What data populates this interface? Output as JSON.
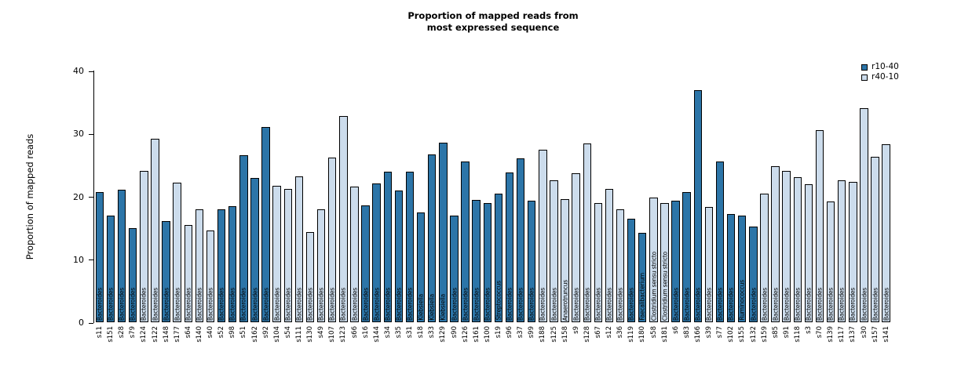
{
  "chart": {
    "title_line1": "Proportion of mapped reads from",
    "title_line2": "most expressed sequence",
    "ylabel": "Proportion of mapped reads"
  },
  "chart_data": {
    "type": "bar",
    "title": "Proportion of mapped reads from most expressed sequence",
    "xlabel": "",
    "ylabel": "Proportion of mapped reads",
    "ylim": [
      0,
      40
    ],
    "yticks": [
      0,
      10,
      20,
      30,
      40
    ],
    "grid": false,
    "legend_position": "top-right",
    "bar_outline": "#000000",
    "legend": [
      {
        "label": "r10-40",
        "color": "#2c75a8"
      },
      {
        "label": "r40-10",
        "color": "#ccdcec"
      }
    ],
    "bars": [
      {
        "sample": "s11",
        "value": 20.7,
        "group": "r10-40",
        "taxon": "Bacteroides"
      },
      {
        "sample": "s151",
        "value": 17.0,
        "group": "r10-40",
        "taxon": "Bacteroides"
      },
      {
        "sample": "s28",
        "value": 21.1,
        "group": "r10-40",
        "taxon": "Bacteroides"
      },
      {
        "sample": "s79",
        "value": 14.9,
        "group": "r10-40",
        "taxon": "Bacteroides"
      },
      {
        "sample": "s124",
        "value": 24.1,
        "group": "r40-10",
        "taxon": "Bacteroides"
      },
      {
        "sample": "s122",
        "value": 29.1,
        "group": "r40-10",
        "taxon": "Bacteroides"
      },
      {
        "sample": "s148",
        "value": 16.1,
        "group": "r10-40",
        "taxon": "Bacteroides"
      },
      {
        "sample": "s177",
        "value": 22.2,
        "group": "r40-10",
        "taxon": "Bacteroides"
      },
      {
        "sample": "s64",
        "value": 15.4,
        "group": "r40-10",
        "taxon": "Bacteroides"
      },
      {
        "sample": "s140",
        "value": 17.9,
        "group": "r40-10",
        "taxon": "Bacteroides"
      },
      {
        "sample": "s40",
        "value": 14.6,
        "group": "r40-10",
        "taxon": "Bacteroides"
      },
      {
        "sample": "s52",
        "value": 18.0,
        "group": "r10-40",
        "taxon": "Bacteroides"
      },
      {
        "sample": "s98",
        "value": 18.5,
        "group": "r10-40",
        "taxon": "Bacteroides"
      },
      {
        "sample": "s51",
        "value": 26.5,
        "group": "r10-40",
        "taxon": "Bacteroides"
      },
      {
        "sample": "s162",
        "value": 22.9,
        "group": "r10-40",
        "taxon": "Bacteroides"
      },
      {
        "sample": "s92",
        "value": 31.0,
        "group": "r10-40",
        "taxon": "Bacteroides"
      },
      {
        "sample": "s104",
        "value": 21.7,
        "group": "r40-10",
        "taxon": "Bacteroides"
      },
      {
        "sample": "s54",
        "value": 21.2,
        "group": "r40-10",
        "taxon": "Bacteroides"
      },
      {
        "sample": "s111",
        "value": 23.2,
        "group": "r40-10",
        "taxon": "Bacteroides"
      },
      {
        "sample": "s130",
        "value": 14.3,
        "group": "r40-10",
        "taxon": "Bacteroides"
      },
      {
        "sample": "s49",
        "value": 18.0,
        "group": "r40-10",
        "taxon": "Bacteroides"
      },
      {
        "sample": "s107",
        "value": 26.2,
        "group": "r40-10",
        "taxon": "Bacteroides"
      },
      {
        "sample": "s123",
        "value": 32.8,
        "group": "r40-10",
        "taxon": "Bacteroides"
      },
      {
        "sample": "s66",
        "value": 21.6,
        "group": "r40-10",
        "taxon": "Bacteroides"
      },
      {
        "sample": "s16",
        "value": 18.6,
        "group": "r10-40",
        "taxon": "Bacteroides"
      },
      {
        "sample": "s144",
        "value": 22.0,
        "group": "r10-40",
        "taxon": "Bacteroides"
      },
      {
        "sample": "s34",
        "value": 23.9,
        "group": "r10-40",
        "taxon": "Bacteroides"
      },
      {
        "sample": "s35",
        "value": 20.9,
        "group": "r10-40",
        "taxon": "Bacteroides"
      },
      {
        "sample": "s31",
        "value": 23.9,
        "group": "r10-40",
        "taxon": "Bacteroides"
      },
      {
        "sample": "s18",
        "value": 17.4,
        "group": "r10-40",
        "taxon": "Klebsiella"
      },
      {
        "sample": "s33",
        "value": 26.7,
        "group": "r10-40",
        "taxon": "Klebsiella"
      },
      {
        "sample": "s129",
        "value": 28.6,
        "group": "r10-40",
        "taxon": "Klebsiella"
      },
      {
        "sample": "s90",
        "value": 16.9,
        "group": "r10-40",
        "taxon": "Bacteroides"
      },
      {
        "sample": "s126",
        "value": 25.5,
        "group": "r10-40",
        "taxon": "Bacteroides"
      },
      {
        "sample": "s161",
        "value": 19.5,
        "group": "r10-40",
        "taxon": "Bacteroides"
      },
      {
        "sample": "s100",
        "value": 19.0,
        "group": "r10-40",
        "taxon": "Bacteroides"
      },
      {
        "sample": "s19",
        "value": 20.4,
        "group": "r10-40",
        "taxon": "Streptococcus"
      },
      {
        "sample": "s96",
        "value": 23.8,
        "group": "r10-40",
        "taxon": "Bacteroides"
      },
      {
        "sample": "s37",
        "value": 26.0,
        "group": "r10-40",
        "taxon": "Bacteroides"
      },
      {
        "sample": "s99",
        "value": 19.3,
        "group": "r10-40",
        "taxon": "Bacteroides"
      },
      {
        "sample": "s188",
        "value": 27.4,
        "group": "r40-10",
        "taxon": "Bacteroides"
      },
      {
        "sample": "s125",
        "value": 22.5,
        "group": "r40-10",
        "taxon": "Bacteroides"
      },
      {
        "sample": "s158",
        "value": 19.6,
        "group": "r40-10",
        "taxon": "Anaerotruncus"
      },
      {
        "sample": "s9",
        "value": 23.7,
        "group": "r40-10",
        "taxon": "Bacteroides"
      },
      {
        "sample": "s128",
        "value": 28.4,
        "group": "r40-10",
        "taxon": "Bacteroides"
      },
      {
        "sample": "s67",
        "value": 19.0,
        "group": "r40-10",
        "taxon": "Bacteroides"
      },
      {
        "sample": "s12",
        "value": 21.2,
        "group": "r40-10",
        "taxon": "Bacteroides"
      },
      {
        "sample": "s36",
        "value": 17.9,
        "group": "r40-10",
        "taxon": "Bacteroides"
      },
      {
        "sample": "s119",
        "value": 16.5,
        "group": "r10-40",
        "taxon": "Bacteroides"
      },
      {
        "sample": "s180",
        "value": 14.2,
        "group": "r10-40",
        "taxon": "Faecalibacterium"
      },
      {
        "sample": "s58",
        "value": 19.8,
        "group": "r40-10",
        "taxon": "Clostridium sensu stricto"
      },
      {
        "sample": "s181",
        "value": 19.0,
        "group": "r40-10",
        "taxon": "Clostridium sensu stricto"
      },
      {
        "sample": "s6",
        "value": 19.3,
        "group": "r10-40",
        "taxon": "Bacteroides"
      },
      {
        "sample": "s83",
        "value": 20.7,
        "group": "r10-40",
        "taxon": "Bacteroides"
      },
      {
        "sample": "s166",
        "value": 36.9,
        "group": "r10-40",
        "taxon": "Bacteroides"
      },
      {
        "sample": "s39",
        "value": 18.3,
        "group": "r40-10",
        "taxon": "Bacteroides"
      },
      {
        "sample": "s77",
        "value": 25.5,
        "group": "r10-40",
        "taxon": "Bacteroides"
      },
      {
        "sample": "s102",
        "value": 17.2,
        "group": "r10-40",
        "taxon": "Bacteroides"
      },
      {
        "sample": "s155",
        "value": 17.0,
        "group": "r10-40",
        "taxon": "Ruminococcus"
      },
      {
        "sample": "s132",
        "value": 15.2,
        "group": "r10-40",
        "taxon": "Bacteroides"
      },
      {
        "sample": "s159",
        "value": 20.5,
        "group": "r40-10",
        "taxon": "Bacteroides"
      },
      {
        "sample": "s85",
        "value": 24.8,
        "group": "r40-10",
        "taxon": "Bacteroides"
      },
      {
        "sample": "s91",
        "value": 24.0,
        "group": "r40-10",
        "taxon": "Bacteroides"
      },
      {
        "sample": "s118",
        "value": 23.0,
        "group": "r40-10",
        "taxon": "Bacteroides"
      },
      {
        "sample": "s3",
        "value": 21.9,
        "group": "r40-10",
        "taxon": "Bacteroides"
      },
      {
        "sample": "s70",
        "value": 30.5,
        "group": "r40-10",
        "taxon": "Bacteroides"
      },
      {
        "sample": "s139",
        "value": 19.2,
        "group": "r40-10",
        "taxon": "Bacteroides"
      },
      {
        "sample": "s117",
        "value": 22.5,
        "group": "r40-10",
        "taxon": "Bacteroides"
      },
      {
        "sample": "s137",
        "value": 22.3,
        "group": "r40-10",
        "taxon": "Bacteroides"
      },
      {
        "sample": "s30",
        "value": 34.0,
        "group": "r40-10",
        "taxon": "Bacteroides"
      },
      {
        "sample": "s157",
        "value": 26.3,
        "group": "r40-10",
        "taxon": "Bacteroides"
      },
      {
        "sample": "s141",
        "value": 28.3,
        "group": "r40-10",
        "taxon": "Bacteroides"
      }
    ]
  }
}
